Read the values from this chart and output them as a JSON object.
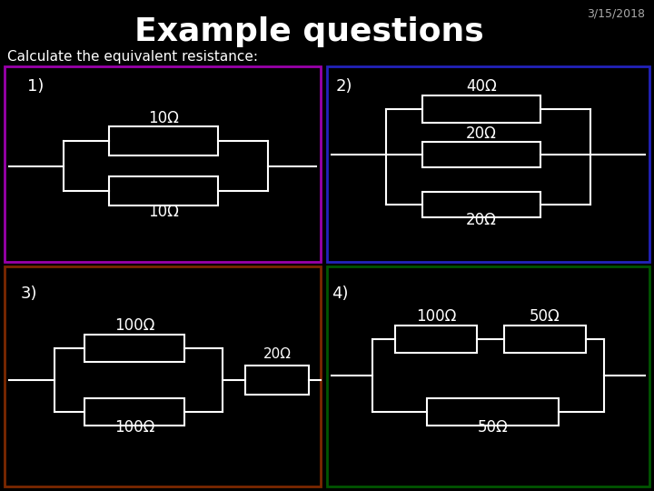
{
  "title": "Example questions",
  "date": "3/15/2018",
  "subtitle": "Calculate the equivalent resistance:",
  "bg_color": "#000000",
  "title_color": "#ffffff",
  "date_color": "#aaaaaa",
  "subtitle_color": "#ffffff",
  "wire_color": "#ffffff",
  "resistor_color": "#ffffff",
  "box1_color": "#9900aa",
  "box2_color": "#2222bb",
  "box3_color": "#7B2800",
  "box4_color": "#005500",
  "labels": {
    "q1": "1)",
    "q2": "2)",
    "q3": "3)",
    "q4": "4)"
  },
  "resistors": {
    "q1": [
      "10Ω",
      "10Ω"
    ],
    "q2": [
      "40Ω",
      "20Ω",
      "20Ω"
    ],
    "q3": [
      "100Ω",
      "100Ω",
      "20Ω"
    ],
    "q4": [
      "100Ω",
      "50Ω",
      "50Ω"
    ]
  }
}
